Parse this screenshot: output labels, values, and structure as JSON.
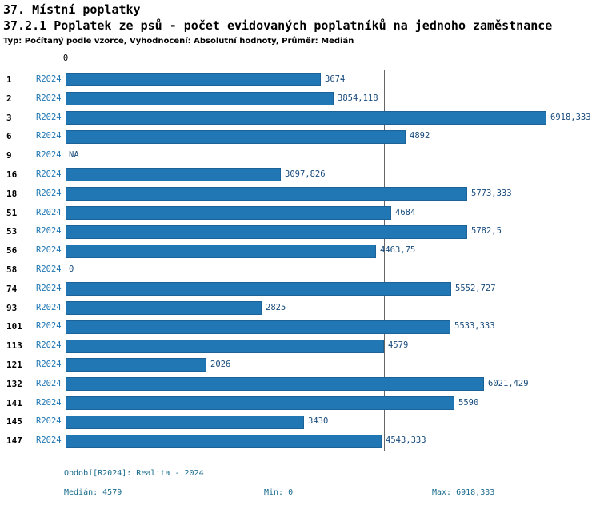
{
  "header": {
    "title": "37. Místní poplatky",
    "subtitle": "37.2.1 Poplatek ze psů - počet evidovaných poplatníků na jednoho zaměstnance",
    "meta": "Typ: Počítaný podle vzorce, Vyhodnocení: Absolutní hodnoty, Průměr: Medián"
  },
  "chart_data": {
    "type": "bar",
    "orientation": "horizontal",
    "series_name": "R2024",
    "zero_label": "0",
    "xlim": [
      0,
      6918.333
    ],
    "median": 4579,
    "grid": "median-line-only",
    "rows": [
      {
        "id": "1",
        "period": "R2024",
        "value": 3674,
        "label": "3674"
      },
      {
        "id": "2",
        "period": "R2024",
        "value": 3854.118,
        "label": "3854,118"
      },
      {
        "id": "3",
        "period": "R2024",
        "value": 6918.333,
        "label": "6918,333"
      },
      {
        "id": "6",
        "period": "R2024",
        "value": 4892,
        "label": "4892"
      },
      {
        "id": "9",
        "period": "R2024",
        "value": null,
        "label": "NA"
      },
      {
        "id": "16",
        "period": "R2024",
        "value": 3097.826,
        "label": "3097,826"
      },
      {
        "id": "18",
        "period": "R2024",
        "value": 5773.333,
        "label": "5773,333"
      },
      {
        "id": "51",
        "period": "R2024",
        "value": 4684,
        "label": "4684"
      },
      {
        "id": "53",
        "period": "R2024",
        "value": 5782.5,
        "label": "5782,5"
      },
      {
        "id": "56",
        "period": "R2024",
        "value": 4463.75,
        "label": "4463,75"
      },
      {
        "id": "58",
        "period": "R2024",
        "value": 0,
        "label": "0"
      },
      {
        "id": "74",
        "period": "R2024",
        "value": 5552.727,
        "label": "5552,727"
      },
      {
        "id": "93",
        "period": "R2024",
        "value": 2825,
        "label": "2825"
      },
      {
        "id": "101",
        "period": "R2024",
        "value": 5533.333,
        "label": "5533,333"
      },
      {
        "id": "113",
        "period": "R2024",
        "value": 4579,
        "label": "4579"
      },
      {
        "id": "121",
        "period": "R2024",
        "value": 2026,
        "label": "2026"
      },
      {
        "id": "132",
        "period": "R2024",
        "value": 6021.429,
        "label": "6021,429"
      },
      {
        "id": "141",
        "period": "R2024",
        "value": 5590,
        "label": "5590"
      },
      {
        "id": "145",
        "period": "R2024",
        "value": 3430,
        "label": "3430"
      },
      {
        "id": "147",
        "period": "R2024",
        "value": 4543.333,
        "label": "4543,333"
      }
    ]
  },
  "footer": {
    "period": "Období[R2024]: Realita - 2024",
    "median": "Medián: 4579",
    "min": "Min: 0",
    "max": "Max: 6918,333"
  },
  "colors": {
    "bar": "#2077b4",
    "bar_border": "#1a6298",
    "value_text": "#174a7c",
    "period_text": "#2077b4",
    "footer_text": "#176a8c",
    "median_line": "#666666"
  }
}
